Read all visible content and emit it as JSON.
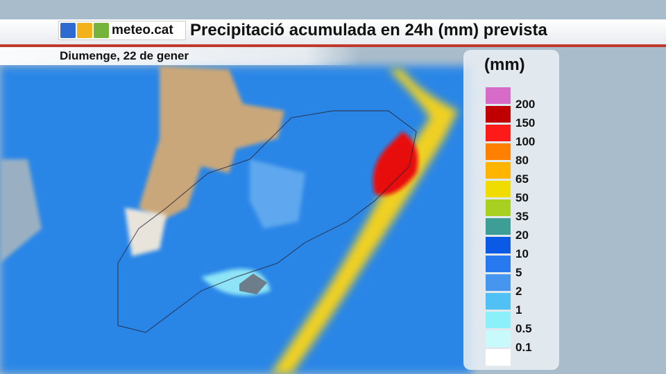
{
  "header": {
    "logo": "meteo.cat",
    "title": "Precipitació acumulada en 24h (mm) prevista",
    "date": "Diumenge, 22 de gener"
  },
  "legend": {
    "unit": "(mm)",
    "labels": [
      "200",
      "150",
      "100",
      "80",
      "65",
      "50",
      "35",
      "20",
      "10",
      "5",
      "2",
      "1",
      "0.5",
      "0.1"
    ],
    "swatches": [
      "#d66cc8",
      "#c00000",
      "#ff1a1a",
      "#ff8000",
      "#ffb400",
      "#f0dc00",
      "#a8d020",
      "#3c9e94",
      "#0a5ae6",
      "#2878f0",
      "#4696f0",
      "#50c0f5",
      "#8cf0fa",
      "#c8fafc",
      "#ffffff"
    ]
  }
}
